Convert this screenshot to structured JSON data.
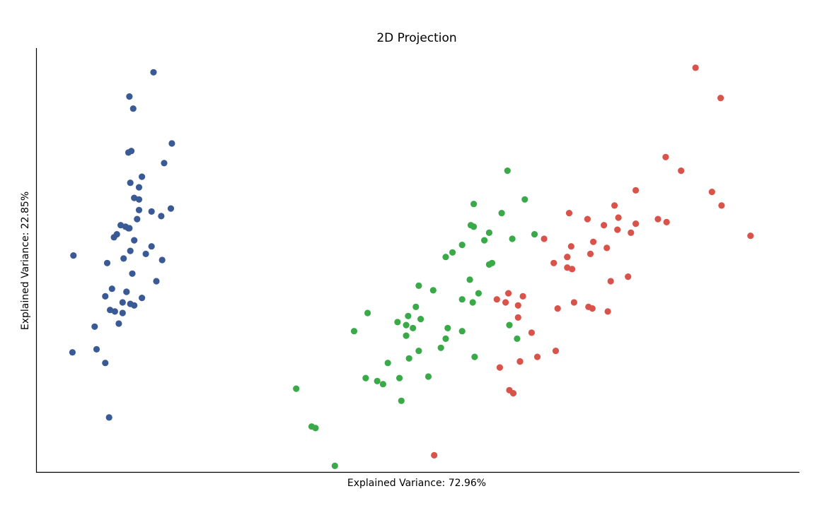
{
  "chart_data": {
    "type": "scatter",
    "title": "2D Projection",
    "xlabel": "Explained Variance: 72.96%",
    "ylabel": "Explained Variance: 22.85%",
    "xlim": [
      -3.6,
      4.3
    ],
    "ylim": [
      -1.3,
      1.5
    ],
    "ticks_shown": false,
    "grid": false,
    "legend": "none",
    "series": [
      {
        "color": "#3a5a96",
        "points": [
          [
            -2.68,
            0.32
          ],
          [
            -2.71,
            -0.18
          ],
          [
            -2.89,
            -0.14
          ],
          [
            -2.75,
            -0.32
          ],
          [
            -2.73,
            0.33
          ],
          [
            -2.28,
            0.74
          ],
          [
            -2.82,
            -0.09
          ],
          [
            -2.63,
            0.16
          ],
          [
            -2.89,
            -0.58
          ],
          [
            -2.67,
            -0.11
          ],
          [
            -2.51,
            0.65
          ],
          [
            -2.61,
            0.01
          ],
          [
            -2.79,
            -0.24
          ],
          [
            -3.23,
            -0.51
          ],
          [
            -2.64,
            1.18
          ],
          [
            -2.39,
            1.34
          ],
          [
            -2.62,
            0.82
          ],
          [
            -2.65,
            0.31
          ],
          [
            -2.2,
            0.87
          ],
          [
            -2.59,
            0.51
          ],
          [
            -2.31,
            0.39
          ],
          [
            -2.54,
            0.43
          ],
          [
            -3.22,
            0.13
          ],
          [
            -2.3,
            0.1
          ],
          [
            -2.36,
            -0.04
          ],
          [
            -2.51,
            -0.15
          ],
          [
            -2.47,
            0.14
          ],
          [
            -2.56,
            0.37
          ],
          [
            -2.64,
            0.31
          ],
          [
            -2.63,
            -0.19
          ],
          [
            -2.59,
            -0.2
          ],
          [
            -2.41,
            0.42
          ],
          [
            -2.65,
            0.81
          ],
          [
            -2.6,
            1.1
          ],
          [
            -2.67,
            -0.11
          ],
          [
            -2.87,
            0.08
          ],
          [
            -2.63,
            0.61
          ],
          [
            -2.8,
            0.25
          ],
          [
            -2.98,
            -0.49
          ],
          [
            -2.59,
            0.23
          ],
          [
            -2.77,
            0.27
          ],
          [
            -2.85,
            -0.94
          ],
          [
            -3.0,
            -0.34
          ],
          [
            -2.41,
            0.19
          ],
          [
            -2.21,
            0.44
          ],
          [
            -2.71,
            -0.25
          ],
          [
            -2.54,
            0.5
          ],
          [
            -2.84,
            -0.23
          ],
          [
            -2.54,
            0.58
          ],
          [
            -2.7,
            0.11
          ]
        ]
      },
      {
        "color": "#3aaa49",
        "points": [
          [
            1.28,
            0.69
          ],
          [
            0.93,
            0.32
          ],
          [
            1.46,
            0.5
          ],
          [
            0.18,
            -0.83
          ],
          [
            1.09,
            0.07
          ],
          [
            0.64,
            -0.42
          ],
          [
            1.09,
            0.28
          ],
          [
            -0.75,
            -1.0
          ],
          [
            1.04,
            0.23
          ],
          [
            -0.01,
            -0.72
          ],
          [
            -0.51,
            -1.26
          ],
          [
            0.51,
            -0.1
          ],
          [
            0.26,
            -0.55
          ],
          [
            0.98,
            -0.12
          ],
          [
            -0.17,
            -0.25
          ],
          [
            0.93,
            0.47
          ],
          [
            0.66,
            -0.35
          ],
          [
            0.23,
            -0.33
          ],
          [
            0.94,
            -0.54
          ],
          [
            0.04,
            -0.58
          ],
          [
            1.12,
            0.08
          ],
          [
            0.36,
            -0.07
          ],
          [
            1.3,
            -0.33
          ],
          [
            0.92,
            -0.18
          ],
          [
            0.71,
            0.15
          ],
          [
            0.9,
            0.33
          ],
          [
            1.33,
            0.24
          ],
          [
            1.56,
            0.27
          ],
          [
            0.81,
            -0.16
          ],
          [
            -0.31,
            -0.37
          ],
          [
            -0.07,
            -0.7
          ],
          [
            -0.19,
            -0.68
          ],
          [
            0.14,
            -0.31
          ],
          [
            1.38,
            -0.42
          ],
          [
            0.59,
            -0.48
          ],
          [
            0.81,
            0.2
          ],
          [
            1.22,
            0.41
          ],
          [
            0.81,
            -0.37
          ],
          [
            0.25,
            -0.27
          ],
          [
            0.16,
            -0.68
          ],
          [
            0.46,
            -0.67
          ],
          [
            0.89,
            -0.03
          ],
          [
            0.23,
            -0.4
          ],
          [
            -0.71,
            -1.01
          ],
          [
            0.36,
            -0.5
          ],
          [
            0.33,
            -0.21
          ],
          [
            0.38,
            -0.29
          ],
          [
            0.64,
            0.12
          ],
          [
            -0.91,
            -0.75
          ],
          [
            0.3,
            -0.35
          ]
        ]
      },
      {
        "color": "#d9534a",
        "points": [
          [
            2.53,
            -0.01
          ],
          [
            1.41,
            -0.57
          ],
          [
            2.61,
            0.34
          ],
          [
            1.97,
            -0.18
          ],
          [
            2.35,
            -0.04
          ],
          [
            3.4,
            0.55
          ],
          [
            0.52,
            -1.19
          ],
          [
            2.93,
            0.35
          ],
          [
            2.32,
            -0.24
          ],
          [
            2.92,
            0.78
          ],
          [
            1.66,
            0.24
          ],
          [
            1.8,
            -0.22
          ],
          [
            2.17,
            0.22
          ],
          [
            1.34,
            -0.78
          ],
          [
            1.59,
            -0.54
          ],
          [
            1.9,
            0.12
          ],
          [
            1.95,
            0.04
          ],
          [
            3.49,
            1.17
          ],
          [
            3.8,
            0.26
          ],
          [
            1.3,
            -0.76
          ],
          [
            2.43,
            0.38
          ],
          [
            1.2,
            -0.61
          ],
          [
            3.5,
            0.46
          ],
          [
            1.39,
            -0.2
          ],
          [
            2.28,
            0.33
          ],
          [
            2.61,
            0.56
          ],
          [
            1.26,
            -0.18
          ],
          [
            1.29,
            -0.12
          ],
          [
            2.12,
            -0.21
          ],
          [
            2.39,
            0.46
          ],
          [
            2.84,
            0.37
          ],
          [
            3.23,
            1.37
          ],
          [
            2.16,
            -0.22
          ],
          [
            1.44,
            -0.14
          ],
          [
            1.78,
            -0.5
          ],
          [
            3.08,
            0.69
          ],
          [
            2.14,
            0.14
          ],
          [
            1.9,
            0.05
          ],
          [
            1.17,
            -0.16
          ],
          [
            2.11,
            0.37
          ],
          [
            2.31,
            0.18
          ],
          [
            1.92,
            0.41
          ],
          [
            1.41,
            -0.57
          ],
          [
            2.56,
            0.28
          ],
          [
            2.42,
            0.3
          ],
          [
            1.94,
            0.19
          ],
          [
            1.53,
            -0.38
          ],
          [
            1.76,
            0.08
          ],
          [
            1.9,
            0.12
          ],
          [
            1.39,
            -0.28
          ]
        ]
      }
    ]
  }
}
